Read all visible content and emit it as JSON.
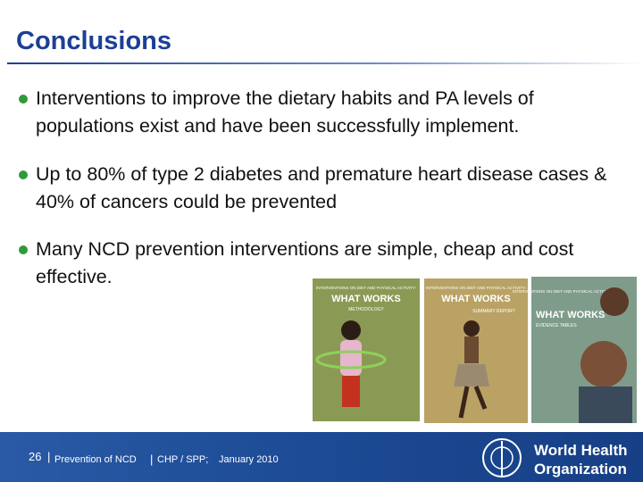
{
  "header": {
    "title": "Conclusions"
  },
  "bullets": [
    "Interventions to improve the dietary habits and PA levels of populations exist and have been successfully implement.",
    "Up to 80% of type 2 diabetes and premature heart disease cases & 40% of cancers could be prevented",
    "Many NCD prevention interventions are simple, cheap and cost effective."
  ],
  "covers": [
    {
      "kicker": "INTERVENTIONS ON DIET AND PHYSICAL ACTIVITY:",
      "title": "WHAT WORKS",
      "subtitle": "METHODOLOGY"
    },
    {
      "kicker": "INTERVENTIONS ON DIET AND PHYSICAL ACTIVITY:",
      "title": "WHAT WORKS",
      "subtitle": "SUMMARY REPORT"
    },
    {
      "kicker": "INTERVENTIONS ON DIET AND PHYSICAL ACTIVITY:",
      "title": "WHAT WORKS",
      "subtitle": "EVIDENCE TABLES"
    }
  ],
  "footer": {
    "page": "26",
    "section": "Prevention of NCD",
    "unit": "CHP / SPP;",
    "date": "January 2010",
    "org_line1": "World Health",
    "org_line2": "Organization"
  }
}
